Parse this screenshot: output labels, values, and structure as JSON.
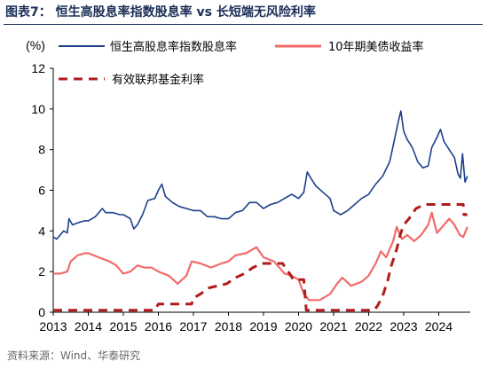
{
  "title": "图表7：  恒生高股息率指数股息率 vs 长短端无风险利率",
  "source": "资料来源：Wind、华泰研究",
  "colors": {
    "hsi": "#1c3f8a",
    "ust": "#f26b6b",
    "mmf": "#b01c1c",
    "title": "#1a2e57"
  },
  "chart_data": {
    "type": "line",
    "ylabel": "(%)",
    "ylim": [
      0,
      12
    ],
    "yticks": [
      0,
      2,
      4,
      6,
      8,
      10,
      12
    ],
    "xlim": [
      2013.0,
      2024.9
    ],
    "xticks": [
      2013,
      2014,
      2015,
      2016,
      2017,
      2018,
      2019,
      2020,
      2021,
      2022,
      2023,
      2024
    ],
    "legend_position": "top",
    "grid": false,
    "series": [
      {
        "name": "恒生高股息率指数股息率",
        "style": "solid",
        "points": [
          [
            2013.0,
            3.7
          ],
          [
            2013.1,
            3.6
          ],
          [
            2013.2,
            3.8
          ],
          [
            2013.3,
            4.0
          ],
          [
            2013.4,
            3.9
          ],
          [
            2013.45,
            4.6
          ],
          [
            2013.55,
            4.3
          ],
          [
            2013.7,
            4.4
          ],
          [
            2013.9,
            4.5
          ],
          [
            2014.0,
            4.5
          ],
          [
            2014.2,
            4.7
          ],
          [
            2014.4,
            5.1
          ],
          [
            2014.5,
            4.9
          ],
          [
            2014.7,
            4.9
          ],
          [
            2014.9,
            4.8
          ],
          [
            2015.0,
            4.8
          ],
          [
            2015.2,
            4.6
          ],
          [
            2015.3,
            4.1
          ],
          [
            2015.4,
            4.3
          ],
          [
            2015.55,
            4.8
          ],
          [
            2015.7,
            5.5
          ],
          [
            2015.9,
            5.6
          ],
          [
            2016.0,
            6.0
          ],
          [
            2016.1,
            6.3
          ],
          [
            2016.2,
            5.7
          ],
          [
            2016.4,
            5.4
          ],
          [
            2016.6,
            5.2
          ],
          [
            2016.8,
            5.1
          ],
          [
            2017.0,
            5.0
          ],
          [
            2017.2,
            5.0
          ],
          [
            2017.4,
            4.7
          ],
          [
            2017.6,
            4.7
          ],
          [
            2017.8,
            4.6
          ],
          [
            2018.0,
            4.6
          ],
          [
            2018.2,
            4.9
          ],
          [
            2018.4,
            5.0
          ],
          [
            2018.6,
            5.4
          ],
          [
            2018.8,
            5.4
          ],
          [
            2019.0,
            5.1
          ],
          [
            2019.2,
            5.3
          ],
          [
            2019.4,
            5.4
          ],
          [
            2019.6,
            5.6
          ],
          [
            2019.8,
            5.8
          ],
          [
            2020.0,
            5.6
          ],
          [
            2020.15,
            5.9
          ],
          [
            2020.25,
            6.9
          ],
          [
            2020.35,
            6.6
          ],
          [
            2020.5,
            6.2
          ],
          [
            2020.7,
            5.9
          ],
          [
            2020.9,
            5.6
          ],
          [
            2021.0,
            5.0
          ],
          [
            2021.2,
            4.8
          ],
          [
            2021.4,
            5.0
          ],
          [
            2021.6,
            5.3
          ],
          [
            2021.8,
            5.6
          ],
          [
            2022.0,
            5.8
          ],
          [
            2022.2,
            6.3
          ],
          [
            2022.4,
            6.7
          ],
          [
            2022.6,
            7.4
          ],
          [
            2022.75,
            8.6
          ],
          [
            2022.85,
            9.4
          ],
          [
            2022.92,
            9.9
          ],
          [
            2023.0,
            8.9
          ],
          [
            2023.1,
            8.5
          ],
          [
            2023.25,
            8.1
          ],
          [
            2023.4,
            7.4
          ],
          [
            2023.55,
            7.1
          ],
          [
            2023.7,
            7.2
          ],
          [
            2023.8,
            8.1
          ],
          [
            2023.95,
            8.6
          ],
          [
            2024.05,
            9.0
          ],
          [
            2024.15,
            8.4
          ],
          [
            2024.3,
            8.0
          ],
          [
            2024.45,
            7.6
          ],
          [
            2024.55,
            6.8
          ],
          [
            2024.62,
            6.6
          ],
          [
            2024.68,
            7.8
          ],
          [
            2024.75,
            6.4
          ],
          [
            2024.82,
            6.7
          ]
        ]
      },
      {
        "name": "10年期美债收益率",
        "style": "solid",
        "points": [
          [
            2013.0,
            1.9
          ],
          [
            2013.2,
            1.9
          ],
          [
            2013.4,
            2.0
          ],
          [
            2013.5,
            2.5
          ],
          [
            2013.7,
            2.8
          ],
          [
            2013.9,
            2.9
          ],
          [
            2014.0,
            2.9
          ],
          [
            2014.3,
            2.7
          ],
          [
            2014.6,
            2.5
          ],
          [
            2014.8,
            2.3
          ],
          [
            2015.0,
            1.9
          ],
          [
            2015.2,
            2.0
          ],
          [
            2015.4,
            2.3
          ],
          [
            2015.6,
            2.2
          ],
          [
            2015.8,
            2.2
          ],
          [
            2016.0,
            2.0
          ],
          [
            2016.3,
            1.8
          ],
          [
            2016.55,
            1.4
          ],
          [
            2016.8,
            1.8
          ],
          [
            2016.95,
            2.5
          ],
          [
            2017.2,
            2.4
          ],
          [
            2017.5,
            2.2
          ],
          [
            2017.8,
            2.4
          ],
          [
            2018.0,
            2.5
          ],
          [
            2018.2,
            2.8
          ],
          [
            2018.5,
            2.9
          ],
          [
            2018.8,
            3.2
          ],
          [
            2019.0,
            2.7
          ],
          [
            2019.3,
            2.5
          ],
          [
            2019.6,
            1.9
          ],
          [
            2019.8,
            1.8
          ],
          [
            2020.0,
            1.6
          ],
          [
            2020.15,
            0.9
          ],
          [
            2020.3,
            0.6
          ],
          [
            2020.6,
            0.6
          ],
          [
            2020.9,
            0.9
          ],
          [
            2021.1,
            1.4
          ],
          [
            2021.25,
            1.7
          ],
          [
            2021.5,
            1.3
          ],
          [
            2021.8,
            1.5
          ],
          [
            2022.0,
            1.8
          ],
          [
            2022.2,
            2.4
          ],
          [
            2022.35,
            3.0
          ],
          [
            2022.5,
            2.7
          ],
          [
            2022.7,
            3.5
          ],
          [
            2022.8,
            4.2
          ],
          [
            2022.95,
            3.6
          ],
          [
            2023.1,
            3.8
          ],
          [
            2023.3,
            3.5
          ],
          [
            2023.5,
            3.8
          ],
          [
            2023.7,
            4.3
          ],
          [
            2023.8,
            4.9
          ],
          [
            2023.95,
            3.9
          ],
          [
            2024.1,
            4.2
          ],
          [
            2024.3,
            4.6
          ],
          [
            2024.45,
            4.3
          ],
          [
            2024.6,
            3.8
          ],
          [
            2024.7,
            3.7
          ],
          [
            2024.82,
            4.2
          ]
        ]
      },
      {
        "name": "有效联邦基金利率",
        "style": "dashed",
        "points": [
          [
            2013.0,
            0.1
          ],
          [
            2015.9,
            0.1
          ],
          [
            2016.0,
            0.4
          ],
          [
            2016.95,
            0.4
          ],
          [
            2017.0,
            0.7
          ],
          [
            2017.2,
            0.9
          ],
          [
            2017.45,
            1.2
          ],
          [
            2017.95,
            1.4
          ],
          [
            2018.2,
            1.7
          ],
          [
            2018.45,
            1.9
          ],
          [
            2018.7,
            2.2
          ],
          [
            2018.95,
            2.4
          ],
          [
            2019.55,
            2.4
          ],
          [
            2019.65,
            2.1
          ],
          [
            2019.75,
            1.9
          ],
          [
            2019.85,
            1.6
          ],
          [
            2020.15,
            1.6
          ],
          [
            2020.22,
            0.1
          ],
          [
            2022.15,
            0.1
          ],
          [
            2022.25,
            0.3
          ],
          [
            2022.4,
            0.8
          ],
          [
            2022.55,
            1.6
          ],
          [
            2022.65,
            2.3
          ],
          [
            2022.8,
            3.1
          ],
          [
            2022.9,
            3.8
          ],
          [
            2023.0,
            4.3
          ],
          [
            2023.15,
            4.6
          ],
          [
            2023.35,
            5.1
          ],
          [
            2023.6,
            5.3
          ],
          [
            2024.7,
            5.3
          ],
          [
            2024.72,
            4.8
          ],
          [
            2024.82,
            4.8
          ]
        ]
      }
    ]
  }
}
